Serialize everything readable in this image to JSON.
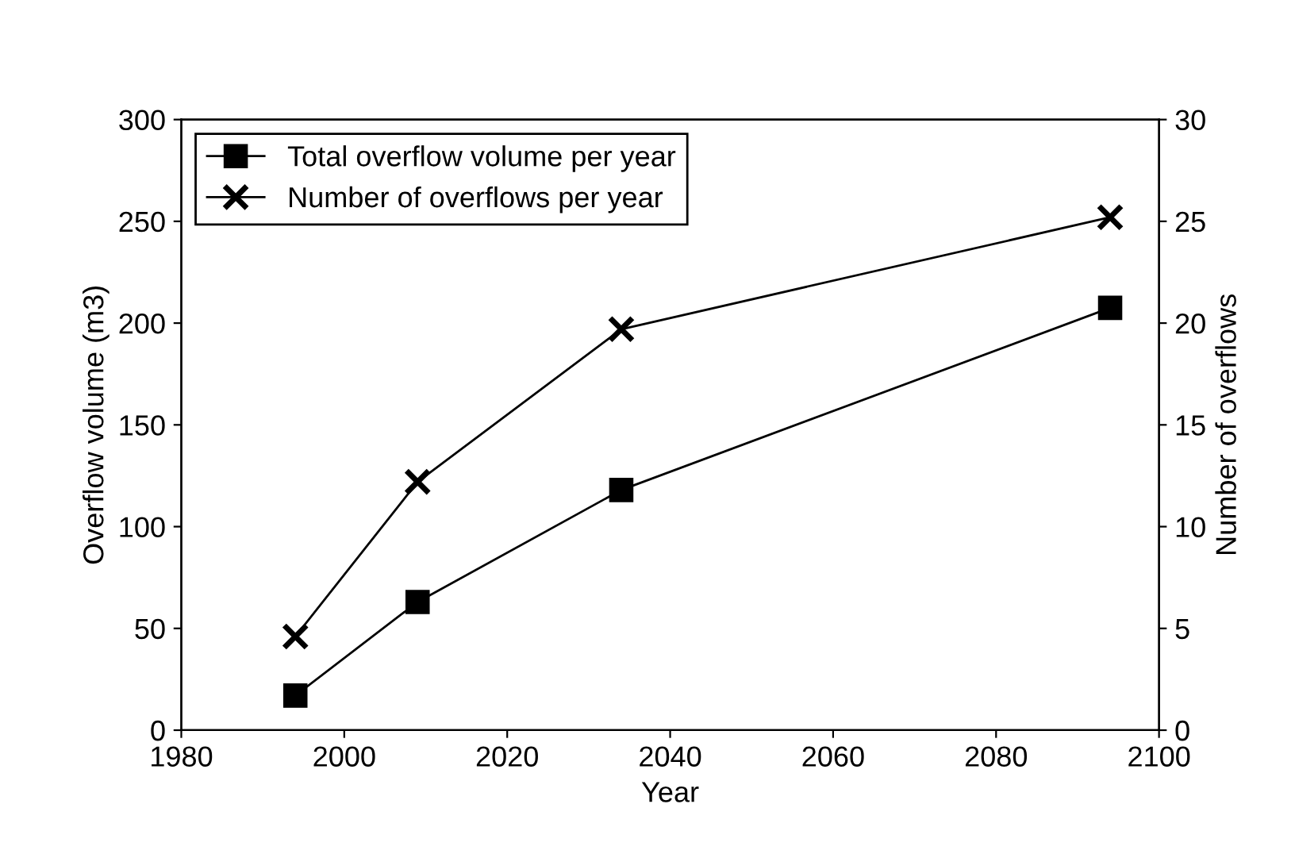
{
  "chart_data": {
    "type": "line",
    "xlabel": "Year",
    "ylabel": "Overflow volume (m3)",
    "y2label": "Number of overflows",
    "x": [
      1994,
      2009,
      2034,
      2094
    ],
    "series": [
      {
        "name": "Total overflow volume per year",
        "color": "#000000",
        "marker": "square",
        "values": [
          17,
          63,
          118,
          207.5
        ]
      },
      {
        "name": "Number of overflows per year",
        "color": "#000000",
        "marker": "cross",
        "axis": "y2",
        "values": [
          4.6,
          12.2,
          19.7,
          25.2
        ]
      }
    ],
    "xlim": [
      1980,
      2100
    ],
    "xticks": [
      1980,
      2000,
      2020,
      2040,
      2060,
      2080,
      2100
    ],
    "ylim": [
      0,
      300
    ],
    "yticks": [
      0,
      50,
      100,
      150,
      200,
      250,
      300
    ],
    "y2lim": [
      0,
      30
    ],
    "y2ticks": [
      0,
      5,
      10,
      15,
      20,
      25,
      30
    ],
    "line_style": "solid",
    "legend": "top left",
    "grid": false
  }
}
